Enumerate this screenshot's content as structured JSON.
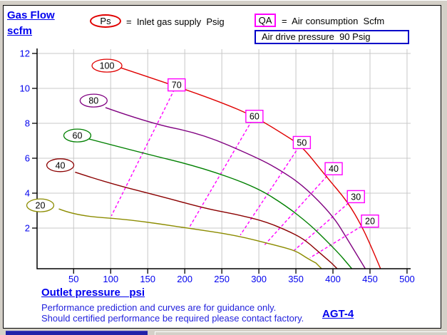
{
  "header": {
    "title_line1": "Gas Flow",
    "title_line2": "scfm"
  },
  "legend": {
    "ps_symbol": "Ps",
    "ps_text": "=  Inlet gas supply  Psig",
    "qa_symbol": "QA",
    "qa_text": "=  Air consumption  Scfm",
    "air_drive_text": "Air drive pressure  90 Psig"
  },
  "footer": {
    "xaxis_title": "Outlet pressure   psi",
    "note1": "Performance prediction and curves are for guidance only.",
    "note2": "Should certified performance be required please contact factory.",
    "model": "AGT-4"
  },
  "colors": {
    "text_blue": "#0000ee",
    "ps_oval_red": "#e00000",
    "qa_magenta": "#ff00ff",
    "air_box_blue": "#0000c8"
  },
  "chart_data": {
    "type": "line",
    "xlabel": "Outlet pressure  psi",
    "ylabel": "Gas Flow  scfm",
    "xlim": [
      0,
      505
    ],
    "ylim": [
      0,
      12.4
    ],
    "x_ticks": [
      50,
      100,
      150,
      200,
      250,
      300,
      350,
      400,
      450,
      500
    ],
    "y_ticks": [
      2,
      4,
      6,
      8,
      10,
      12
    ],
    "grid": true,
    "grid_color": "#c8c8c8",
    "axis_color": "#000000",
    "tick_label_color": "#0000ee",
    "qa_color": "#ff00ff",
    "series": [
      {
        "name": "Ps 100 Psig",
        "label": "100",
        "color": "#e00000",
        "label_pos": [
          95,
          11.3
        ],
        "points": [
          [
            112,
            11.2
          ],
          [
            190,
            10.1
          ],
          [
            249,
            9.2
          ],
          [
            294,
            8.4
          ],
          [
            336,
            7.3
          ],
          [
            358,
            6.7
          ],
          [
            390,
            5.0
          ],
          [
            420,
            3.5
          ],
          [
            439,
            2.1
          ],
          [
            451,
            1.0
          ],
          [
            461,
            0
          ]
        ]
      },
      {
        "name": "Ps 80 Psig",
        "label": "80",
        "color": "#800080",
        "label_pos": [
          77,
          9.3
        ],
        "points": [
          [
            93,
            8.9
          ],
          [
            153,
            8.0
          ],
          [
            223,
            7.4
          ],
          [
            294,
            6.1
          ],
          [
            326,
            5.4
          ],
          [
            361,
            4.4
          ],
          [
            400,
            2.7
          ],
          [
            419,
            1.4
          ],
          [
            439,
            0
          ]
        ]
      },
      {
        "name": "Ps 60 Psig",
        "label": "60",
        "color": "#008000",
        "label_pos": [
          55,
          7.3
        ],
        "points": [
          [
            71,
            7.1
          ],
          [
            143,
            6.3
          ],
          [
            220,
            5.5
          ],
          [
            294,
            4.4
          ],
          [
            336,
            3.3
          ],
          [
            369,
            2.2
          ],
          [
            393,
            1.2
          ],
          [
            409,
            0.5
          ],
          [
            419,
            0
          ]
        ]
      },
      {
        "name": "Ps 40 Psig",
        "label": "40",
        "color": "#8b0000",
        "label_pos": [
          32,
          5.6
        ],
        "points": [
          [
            52,
            5.2
          ],
          [
            95,
            4.6
          ],
          [
            169,
            3.8
          ],
          [
            230,
            3.1
          ],
          [
            268,
            2.8
          ],
          [
            307,
            2.4
          ],
          [
            336,
            1.9
          ],
          [
            360,
            1.4
          ],
          [
            379,
            0.7
          ],
          [
            398,
            0
          ]
        ]
      },
      {
        "name": "Ps 20 Psig",
        "label": "20",
        "color": "#8c8c00",
        "label_pos": [
          5,
          3.3
        ],
        "points": [
          [
            30,
            3.1
          ],
          [
            54,
            2.7
          ],
          [
            124,
            2.5
          ],
          [
            204,
            2.0
          ],
          [
            268,
            1.6
          ],
          [
            324,
            1.0
          ],
          [
            350,
            0.7
          ],
          [
            364,
            0.3
          ],
          [
            377,
            0
          ]
        ]
      }
    ],
    "qa_lines": [
      {
        "label": "70",
        "from": [
          189,
          10.2
        ],
        "to": [
          101,
          2.7
        ]
      },
      {
        "label": "60",
        "from": [
          294,
          8.4
        ],
        "to": [
          207,
          2.1
        ]
      },
      {
        "label": "50",
        "from": [
          358,
          6.9
        ],
        "to": [
          275,
          1.6
        ]
      },
      {
        "label": "40",
        "from": [
          401,
          5.4
        ],
        "to": [
          307,
          1.0
        ]
      },
      {
        "label": "30",
        "from": [
          431,
          3.8
        ],
        "to": [
          347,
          0.7
        ]
      },
      {
        "label": "20",
        "from": [
          450,
          2.4
        ],
        "to": [
          369,
          0.3
        ]
      }
    ]
  }
}
